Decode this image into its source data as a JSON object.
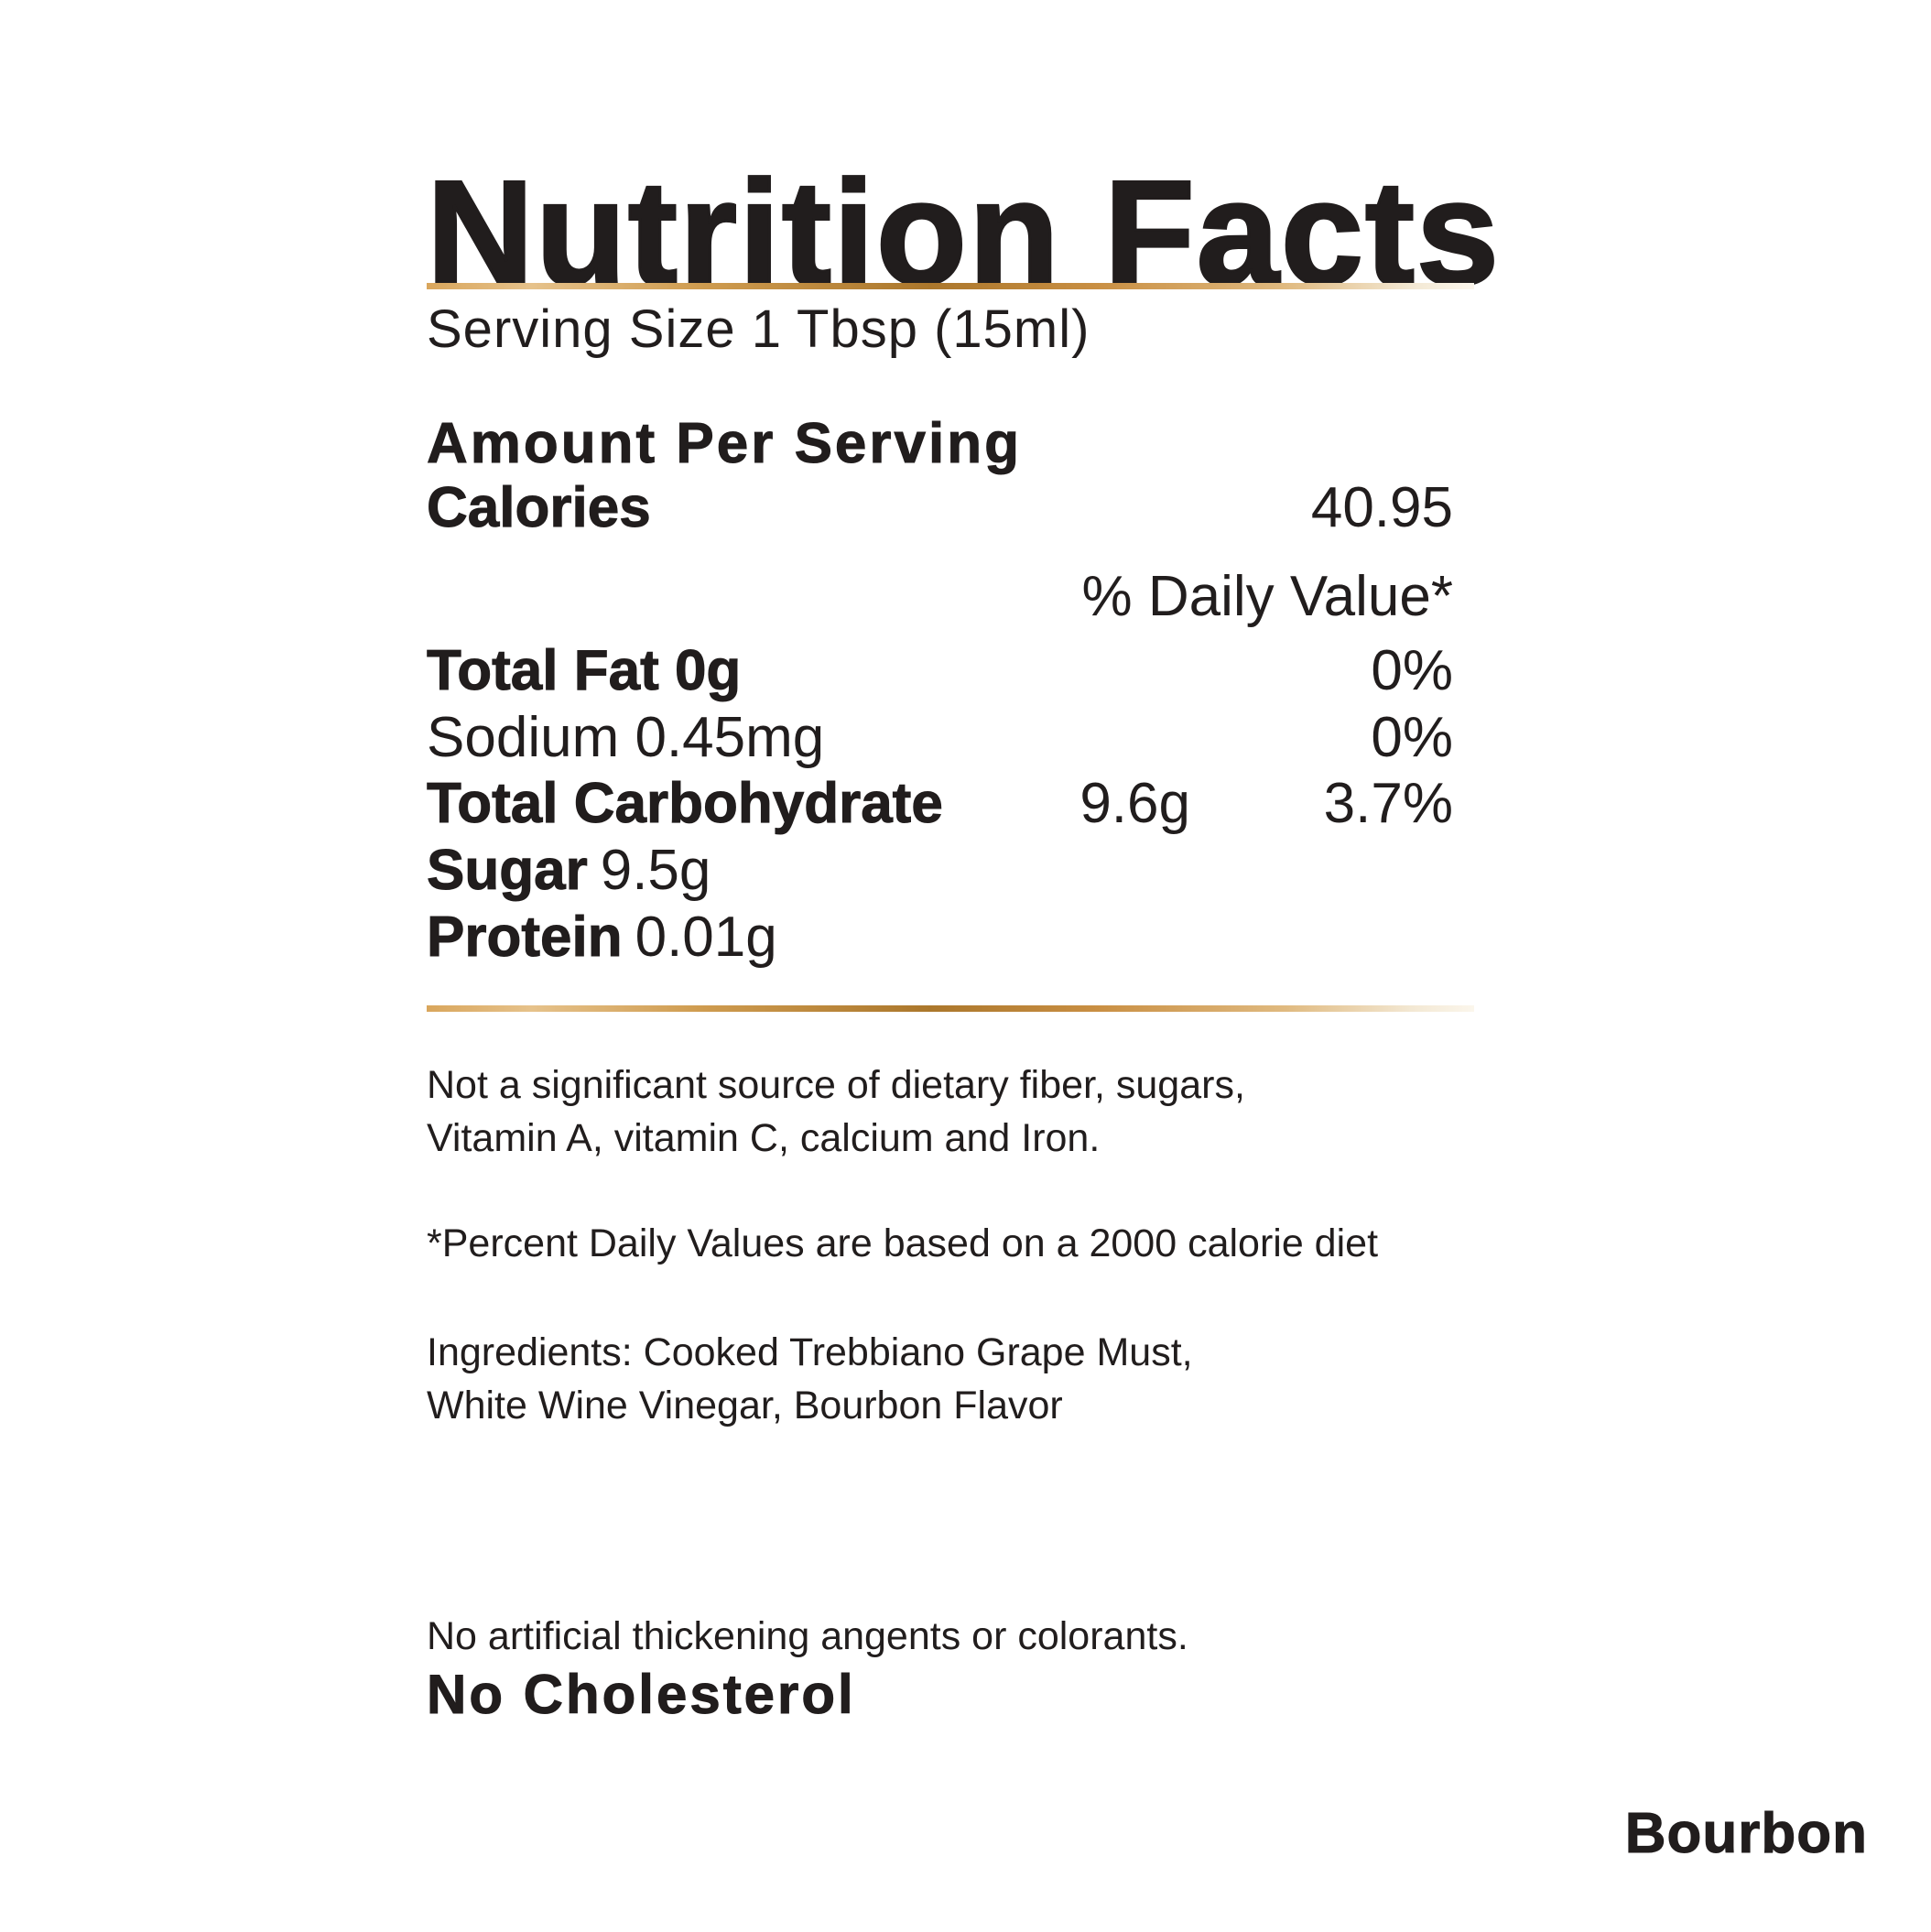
{
  "colors": {
    "text": "#211d1d",
    "gold_dark": "#ab772c",
    "gold_mid": "#c98f43",
    "gold_light": "#e6c28b",
    "background": "#ffffff"
  },
  "header": {
    "title": "Nutrition Facts",
    "serving_size": "Serving Size 1 Tbsp (15ml)"
  },
  "panel": {
    "amount_per_serving": "Amount Per Serving",
    "calories": {
      "label": "Calories",
      "value": "40.95"
    },
    "daily_value_header": "% Daily Value*",
    "rows": [
      {
        "label": "Total Fat 0g",
        "amount": "",
        "percent": "0%",
        "emphasis": "bold"
      },
      {
        "label": "Sodium 0.45mg",
        "amount": "",
        "percent": "0%",
        "emphasis": "regular"
      },
      {
        "label": "Total Carbohydrate",
        "amount": "9.6g",
        "percent": "3.7%",
        "emphasis": "bold"
      },
      {
        "label": "Sugar",
        "inline_value": "9.5g",
        "emphasis": "bold"
      },
      {
        "label": "Protein",
        "inline_value": "0.01g",
        "emphasis": "bold"
      }
    ]
  },
  "footnotes": {
    "significance_line1": "Not a significant source of dietary fiber, sugars,",
    "significance_line2": "Vitamin A, vitamin C, calcium and Iron.",
    "daily_value_note": "*Percent Daily Values are based on a 2000 calorie diet",
    "ingredients_line1": "Ingredients: Cooked Trebbiano Grape Must,",
    "ingredients_line2": "White Wine Vinegar, Bourbon Flavor"
  },
  "claims": {
    "no_artificial": "No artificial thickening angents or colorants.",
    "no_cholesterol": "No Cholesterol"
  },
  "flavor_label": "Bourbon"
}
